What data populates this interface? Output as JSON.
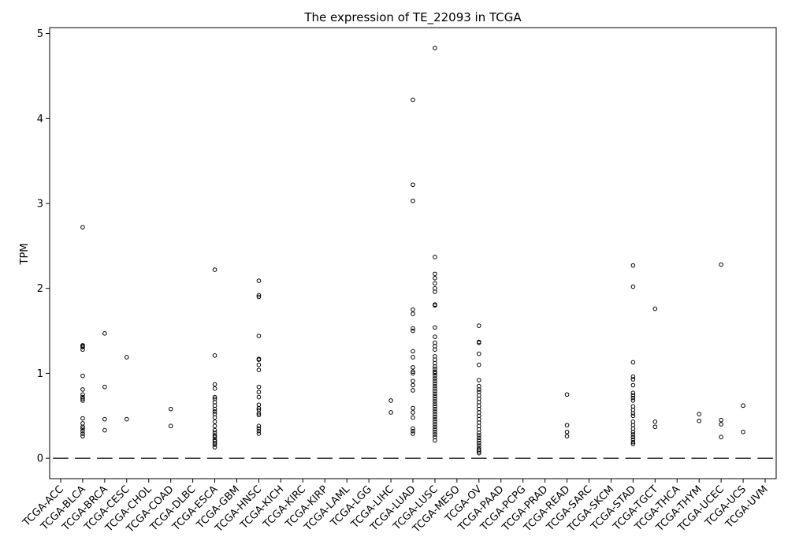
{
  "chart_data": {
    "type": "box",
    "title": "The expression of TE_22093 in TCGA",
    "xlabel": "",
    "ylabel": "TPM",
    "ylim": [
      -0.24,
      5.07
    ],
    "yticks": [
      0,
      1,
      2,
      3,
      4,
      5
    ],
    "grid": false,
    "categories": [
      "TCGA-ACC",
      "TCGA-BLCA",
      "TCGA-BRCA",
      "TCGA-CESC",
      "TCGA-CHOL",
      "TCGA-COAD",
      "TCGA-DLBC",
      "TCGA-ESCA",
      "TCGA-GBM",
      "TCGA-HNSC",
      "TCGA-KICH",
      "TCGA-KIRC",
      "TCGA-KIRP",
      "TCGA-LAML",
      "TCGA-LGG",
      "TCGA-LIHC",
      "TCGA-LUAD",
      "TCGA-LUSC",
      "TCGA-MESO",
      "TCGA-OV",
      "TCGA-PAAD",
      "TCGA-PCPG",
      "TCGA-PRAD",
      "TCGA-READ",
      "TCGA-SARC",
      "TCGA-SKCM",
      "TCGA-STAD",
      "TCGA-TGCT",
      "TCGA-THCA",
      "TCGA-THYM",
      "TCGA-UCEC",
      "TCGA-UCS",
      "TCGA-UVM"
    ],
    "median": [
      0,
      0,
      0,
      0,
      0,
      0,
      0,
      0,
      0,
      0,
      0,
      0,
      0,
      0,
      0,
      0,
      0,
      0,
      0,
      0,
      0,
      0,
      0,
      0,
      0,
      0,
      0,
      0,
      0,
      0,
      0,
      0,
      0
    ],
    "outliers": [
      [],
      [
        2.72,
        1.33,
        1.32,
        1.31,
        1.28,
        0.97,
        0.81,
        0.75,
        0.72,
        0.7,
        0.68,
        0.47,
        0.41,
        0.37,
        0.35,
        0.32,
        0.29,
        0.26
      ],
      [
        1.47,
        0.84,
        0.46,
        0.33
      ],
      [
        1.19,
        0.46
      ],
      [],
      [
        0.58,
        0.38
      ],
      [],
      [
        2.22,
        1.21,
        0.87,
        0.82,
        0.72,
        0.7,
        0.66,
        0.62,
        0.58,
        0.55,
        0.52,
        0.48,
        0.43,
        0.38,
        0.33,
        0.3,
        0.27,
        0.25,
        0.22,
        0.2,
        0.18,
        0.16,
        0.13
      ],
      [],
      [
        2.09,
        1.92,
        1.9,
        1.44,
        1.17,
        1.16,
        1.1,
        1.04,
        0.84,
        0.78,
        0.72,
        0.63,
        0.59,
        0.57,
        0.53,
        0.51,
        0.38,
        0.35,
        0.32,
        0.29
      ],
      [],
      [],
      [],
      [],
      [],
      [
        0.68,
        0.54
      ],
      [
        4.22,
        3.22,
        3.03,
        1.75,
        1.7,
        1.53,
        1.5,
        1.26,
        1.19,
        1.07,
        1.02,
        1.0,
        0.91,
        0.86,
        0.8,
        0.59,
        0.54,
        0.48,
        0.35,
        0.32,
        0.29
      ],
      [
        4.83,
        2.37,
        2.17,
        2.12,
        2.06,
        2.0,
        1.96,
        1.81,
        1.8,
        1.54,
        1.43,
        1.36,
        1.32,
        1.28,
        1.2,
        1.16,
        1.12,
        1.08,
        1.05,
        1.02,
        1.0,
        0.97,
        0.94,
        0.91,
        0.88,
        0.85,
        0.82,
        0.79,
        0.76,
        0.73,
        0.7,
        0.67,
        0.64,
        0.61,
        0.58,
        0.55,
        0.52,
        0.49,
        0.46,
        0.43,
        0.4,
        0.37,
        0.34,
        0.31,
        0.28,
        0.25,
        0.21
      ],
      [],
      [
        1.56,
        1.37,
        1.36,
        1.23,
        1.1,
        0.92,
        0.85,
        0.81,
        0.78,
        0.74,
        0.7,
        0.66,
        0.62,
        0.58,
        0.54,
        0.5,
        0.46,
        0.42,
        0.38,
        0.34,
        0.3,
        0.27,
        0.24,
        0.21,
        0.18,
        0.15,
        0.12,
        0.1,
        0.08,
        0.06
      ],
      [],
      [],
      [],
      [
        0.75,
        0.39,
        0.31,
        0.26
      ],
      [],
      [],
      [
        2.27,
        2.02,
        1.13,
        0.96,
        0.93,
        0.86,
        0.77,
        0.74,
        0.71,
        0.68,
        0.61,
        0.57,
        0.53,
        0.5,
        0.43,
        0.39,
        0.35,
        0.31,
        0.28,
        0.25,
        0.22,
        0.19,
        0.17
      ],
      [
        1.76,
        0.43,
        0.37
      ],
      [],
      [
        0.52,
        0.44
      ],
      [
        2.28,
        0.45,
        0.4,
        0.25
      ],
      [
        0.62,
        0.31
      ],
      []
    ]
  }
}
